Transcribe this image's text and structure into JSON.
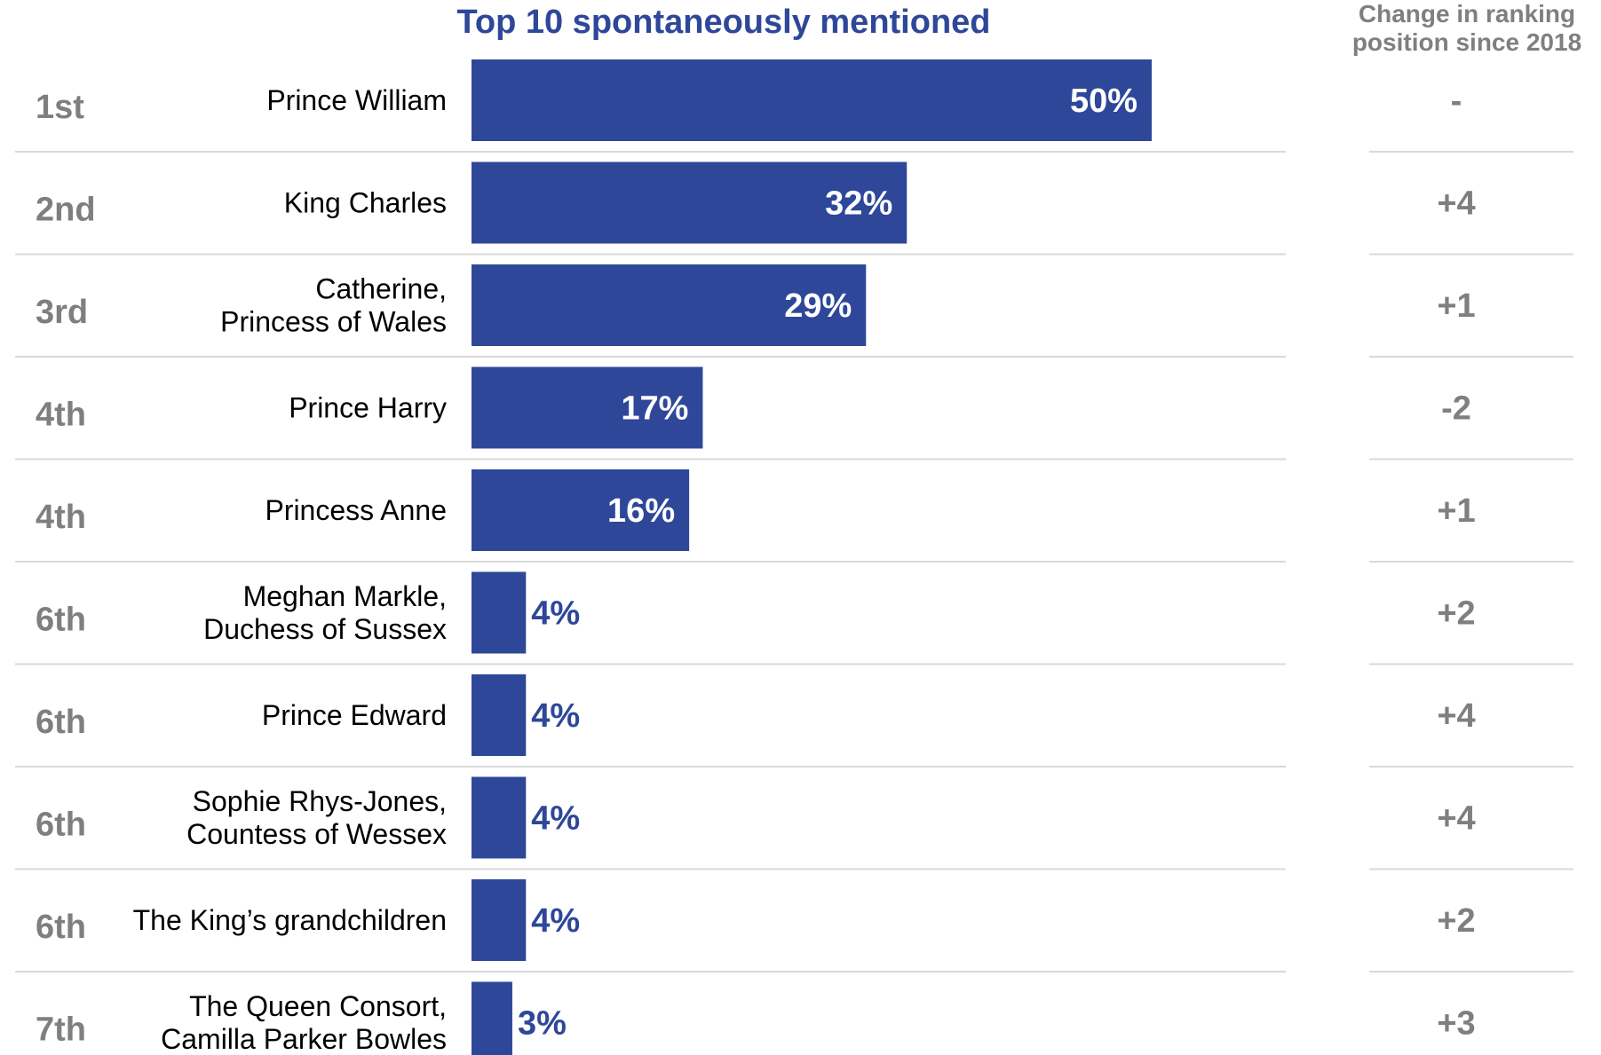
{
  "chart_data": {
    "type": "bar",
    "orientation": "horizontal",
    "title": "Top 10 spontaneously mentioned",
    "change_column_header": [
      "Change in ranking",
      "position since 2018"
    ],
    "bar_color": "#2E4799",
    "text_gray": "#7F7F7F",
    "xlim": [
      0,
      50
    ],
    "rows": [
      {
        "rank": "1st",
        "name": [
          "Prince William"
        ],
        "value": 50,
        "label": "50%",
        "change": "-"
      },
      {
        "rank": "2nd",
        "name": [
          "King Charles"
        ],
        "value": 32,
        "label": "32%",
        "change": "+4"
      },
      {
        "rank": "3rd",
        "name": [
          "Catherine,",
          "Princess of Wales"
        ],
        "value": 29,
        "label": "29%",
        "change": "+1"
      },
      {
        "rank": "4th",
        "name": [
          "Prince Harry"
        ],
        "value": 17,
        "label": "17%",
        "change": "-2"
      },
      {
        "rank": "4th",
        "name": [
          "Princess Anne"
        ],
        "value": 16,
        "label": "16%",
        "change": "+1"
      },
      {
        "rank": "6th",
        "name": [
          "Meghan Markle,",
          "Duchess of Sussex"
        ],
        "value": 4,
        "label": "4%",
        "change": "+2"
      },
      {
        "rank": "6th",
        "name": [
          "Prince Edward"
        ],
        "value": 4,
        "label": "4%",
        "change": "+4"
      },
      {
        "rank": "6th",
        "name": [
          "Sophie Rhys-Jones,",
          "Countess of Wessex"
        ],
        "value": 4,
        "label": "4%",
        "change": "+4"
      },
      {
        "rank": "6th",
        "name": [
          "The King’s grandchildren"
        ],
        "value": 4,
        "label": "4%",
        "change": "+2"
      },
      {
        "rank": "7th",
        "name": [
          "The Queen Consort,",
          "Camilla Parker Bowles"
        ],
        "value": 3,
        "label": "3%",
        "change": "+3"
      }
    ]
  }
}
